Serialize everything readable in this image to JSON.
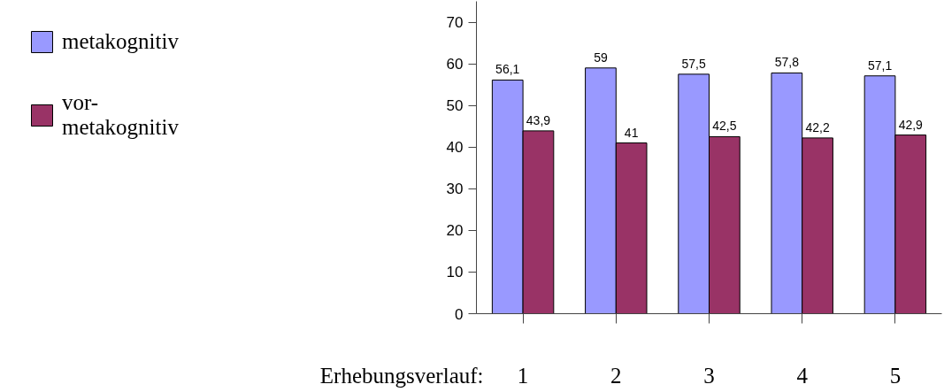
{
  "chart_data": {
    "type": "bar",
    "xlabel": "Erhebungsverlauf:",
    "categories": [
      "1",
      "2",
      "3",
      "4",
      "5"
    ],
    "series": [
      {
        "name": "metakognitiv",
        "color": "#9999ff",
        "values": [
          56.1,
          59,
          57.5,
          57.8,
          57.1
        ],
        "value_labels": [
          "56,1",
          "59",
          "57,5",
          "57,8",
          "57,1"
        ]
      },
      {
        "name": "vor-\nmetakognitiv",
        "color": "#993366",
        "values": [
          43.9,
          41,
          42.5,
          42.2,
          42.9
        ],
        "value_labels": [
          "43,9",
          "41",
          "42,5",
          "42,2",
          "42,9"
        ]
      }
    ],
    "ylim": [
      0,
      75
    ],
    "yticks": [
      0,
      10,
      20,
      30,
      40,
      50,
      60,
      70
    ],
    "legend": "top left"
  }
}
